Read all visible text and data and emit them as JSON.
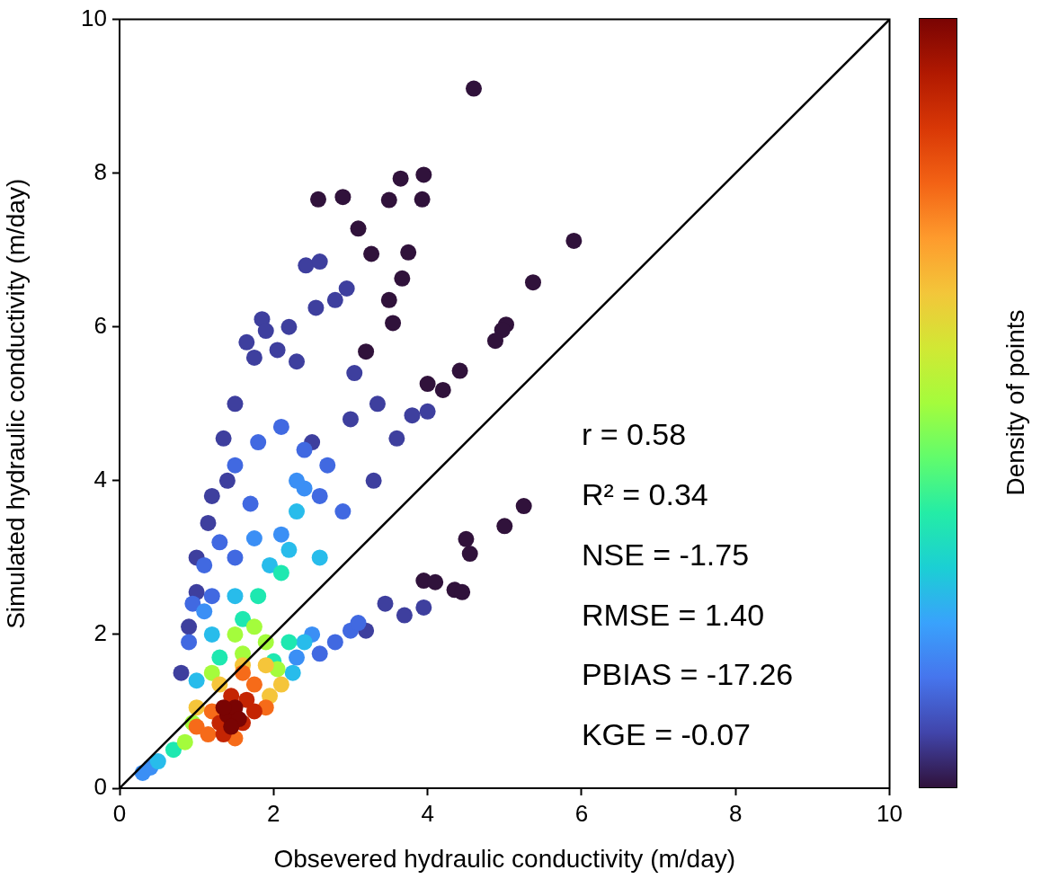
{
  "chart_data": {
    "type": "scatter",
    "xlabel": "Obsevered hydraulic conductivity (m/day)",
    "ylabel": "Simulated hydraulic conductivity (m/day)",
    "clabel": "Density of points",
    "xlim": [
      0,
      10
    ],
    "ylim": [
      0,
      10
    ],
    "xticks": [
      0,
      2,
      4,
      6,
      8,
      10
    ],
    "yticks": [
      0,
      2,
      4,
      6,
      8,
      10
    ],
    "grid": false,
    "legend": false,
    "marker": "circle",
    "annotations": [
      "r = 0.58",
      "R² = 0.34",
      "NSE = -1.75",
      "RMSE = 1.40",
      "PBIAS = -17.26",
      "KGE = -0.07"
    ],
    "series": [
      {
        "x": [
          4.6,
          3.65,
          3.95,
          3.93,
          3.5,
          2.9,
          2.58,
          3.1,
          3.27,
          3.75,
          3.5,
          3.67,
          3.55,
          3.2,
          5.9,
          5.37,
          5.02,
          4.97,
          4.88,
          4.42,
          4.2,
          4.0,
          5.25,
          5.0,
          4.5,
          4.55,
          3.95,
          4.1,
          4.35,
          4.45,
          2.42,
          2.6,
          2.55,
          2.2,
          1.85,
          1.9,
          1.65,
          1.75,
          2.05,
          2.8,
          2.95,
          2.3,
          3.05,
          3.35,
          3.8,
          4.0,
          3.6,
          3.0,
          2.5,
          1.5,
          1.35,
          1.2,
          1.15,
          1.0,
          1.4,
          1.0,
          0.9,
          0.8,
          3.3,
          3.45,
          3.7,
          3.95,
          3.2,
          1.5,
          1.8,
          2.1,
          2.4,
          2.7,
          1.7,
          1.3,
          1.1,
          0.95,
          0.9,
          1.2,
          2.8,
          3.0,
          2.6,
          1.5,
          2.6,
          2.9,
          3.1,
          2.4,
          2.1,
          1.75,
          1.1,
          0.3,
          0.4,
          2.3,
          2.5,
          2.3,
          2.3,
          2.2,
          1.95,
          1.5,
          1.0,
          2.25,
          2.4,
          2.6,
          0.5,
          1.2,
          1.8,
          2.1,
          1.6,
          2.0,
          1.3,
          0.7,
          2.2,
          1.5,
          1.75,
          1.2,
          0.95,
          1.9,
          1.6,
          0.85,
          2.05,
          1.3,
          1.6,
          1.9,
          1.0,
          2.1,
          1.95,
          1.2,
          1.6,
          1.75,
          1.0,
          1.5,
          1.9,
          1.15,
          1.3,
          1.45,
          1.65,
          1.6,
          1.35,
          1.75,
          1.4,
          1.5,
          1.35,
          1.55,
          1.45
        ],
        "values": [
          9.1,
          7.93,
          7.98,
          7.66,
          7.65,
          7.69,
          7.66,
          7.28,
          6.95,
          6.97,
          6.35,
          6.63,
          6.05,
          5.68,
          7.12,
          6.58,
          6.03,
          5.96,
          5.82,
          5.43,
          5.18,
          5.26,
          3.67,
          3.41,
          3.24,
          3.05,
          2.7,
          2.68,
          2.58,
          2.55,
          6.8,
          6.85,
          6.25,
          6.0,
          6.1,
          5.95,
          5.8,
          5.6,
          5.7,
          6.35,
          6.5,
          5.55,
          5.4,
          5.0,
          4.85,
          4.9,
          4.55,
          4.8,
          4.5,
          5.0,
          4.55,
          3.8,
          3.45,
          3.0,
          4.0,
          2.55,
          2.1,
          1.5,
          4.0,
          2.4,
          2.25,
          2.35,
          2.05,
          4.2,
          4.5,
          4.7,
          4.4,
          4.2,
          3.7,
          3.2,
          2.9,
          2.4,
          1.9,
          2.5,
          1.9,
          2.05,
          1.75,
          3.0,
          3.8,
          3.6,
          2.15,
          3.9,
          3.3,
          3.25,
          2.3,
          0.2,
          0.27,
          1.7,
          2.0,
          4.0,
          3.6,
          3.1,
          2.9,
          2.5,
          1.4,
          1.5,
          1.9,
          3.0,
          0.35,
          2.0,
          2.5,
          2.8,
          2.2,
          1.65,
          1.7,
          0.5,
          1.9,
          2.0,
          2.1,
          1.5,
          0.85,
          1.9,
          1.75,
          0.6,
          1.55,
          1.35,
          1.6,
          1.6,
          1.05,
          1.35,
          1.2,
          1.0,
          1.5,
          1.35,
          0.8,
          0.65,
          1.05,
          0.7,
          0.85,
          1.2,
          1.15,
          0.85,
          0.7,
          1.0,
          0.95,
          1.05,
          1.05,
          0.9,
          0.8
        ],
        "colors": [
          "#30123b",
          "#30123b",
          "#30123b",
          "#30123b",
          "#30123b",
          "#30123b",
          "#30123b",
          "#30123b",
          "#30123b",
          "#30123b",
          "#30123b",
          "#30123b",
          "#30123b",
          "#30123b",
          "#30123b",
          "#30123b",
          "#30123b",
          "#30123b",
          "#30123b",
          "#30123b",
          "#30123b",
          "#30123b",
          "#30123b",
          "#30123b",
          "#30123b",
          "#30123b",
          "#30123b",
          "#30123b",
          "#30123b",
          "#30123b",
          "#3e3f9e",
          "#3e3f9e",
          "#3e3f9e",
          "#3e3f9e",
          "#3e3f9e",
          "#3e3f9e",
          "#3e3f9e",
          "#3e3f9e",
          "#3e3f9e",
          "#3e3f9e",
          "#3e3f9e",
          "#3e3f9e",
          "#3e3f9e",
          "#3e3f9e",
          "#3e3f9e",
          "#3e3f9e",
          "#3e3f9e",
          "#3e3f9e",
          "#3e3f9e",
          "#3e3f9e",
          "#3e3f9e",
          "#3e3f9e",
          "#3e3f9e",
          "#3e3f9e",
          "#3e3f9e",
          "#3e3f9e",
          "#3e3f9e",
          "#3e3f9e",
          "#3e3f9e",
          "#3e3f9e",
          "#3e3f9e",
          "#3e3f9e",
          "#3e3f9e",
          "#4169e1",
          "#4169e1",
          "#4169e1",
          "#4169e1",
          "#4169e1",
          "#4169e1",
          "#4169e1",
          "#4169e1",
          "#4169e1",
          "#4169e1",
          "#4169e1",
          "#4169e1",
          "#4169e1",
          "#4169e1",
          "#4169e1",
          "#4169e1",
          "#4169e1",
          "#4169e1",
          "#3b8ff5",
          "#3b8ff5",
          "#3b8ff5",
          "#3b8ff5",
          "#3b8ff5",
          "#3b8ff5",
          "#3b8ff5",
          "#3b8ff5",
          "#3b8ff5",
          "#28bceb",
          "#28bceb",
          "#28bceb",
          "#28bceb",
          "#28bceb",
          "#28bceb",
          "#28bceb",
          "#28bceb",
          "#28bceb",
          "#28bceb",
          "#1ee8b0",
          "#1ee8b0",
          "#1ee8b0",
          "#1ee8b0",
          "#1ee8b0",
          "#1ee8b0",
          "#1ee8b0",
          "#a4fc3c",
          "#a4fc3c",
          "#a4fc3c",
          "#a4fc3c",
          "#a4fc3c",
          "#a4fc3c",
          "#a4fc3c",
          "#a4fc3c",
          "#f5c53a",
          "#f5c53a",
          "#f5c53a",
          "#f5c53a",
          "#f5c53a",
          "#f5c53a",
          "#f66b19",
          "#f66b19",
          "#f66b19",
          "#f66b19",
          "#f66b19",
          "#f66b19",
          "#f66b19",
          "#c42503",
          "#c42503",
          "#c42503",
          "#c42503",
          "#c42503",
          "#c42503",
          "#7a0403",
          "#7a0403",
          "#7a0403",
          "#7a0403",
          "#7a0403"
        ]
      },
      {
        "type": "line",
        "x": [
          0,
          10
        ],
        "values": [
          0,
          10
        ],
        "color": "#000000",
        "marker": "none",
        "line_style": "solid"
      }
    ]
  }
}
